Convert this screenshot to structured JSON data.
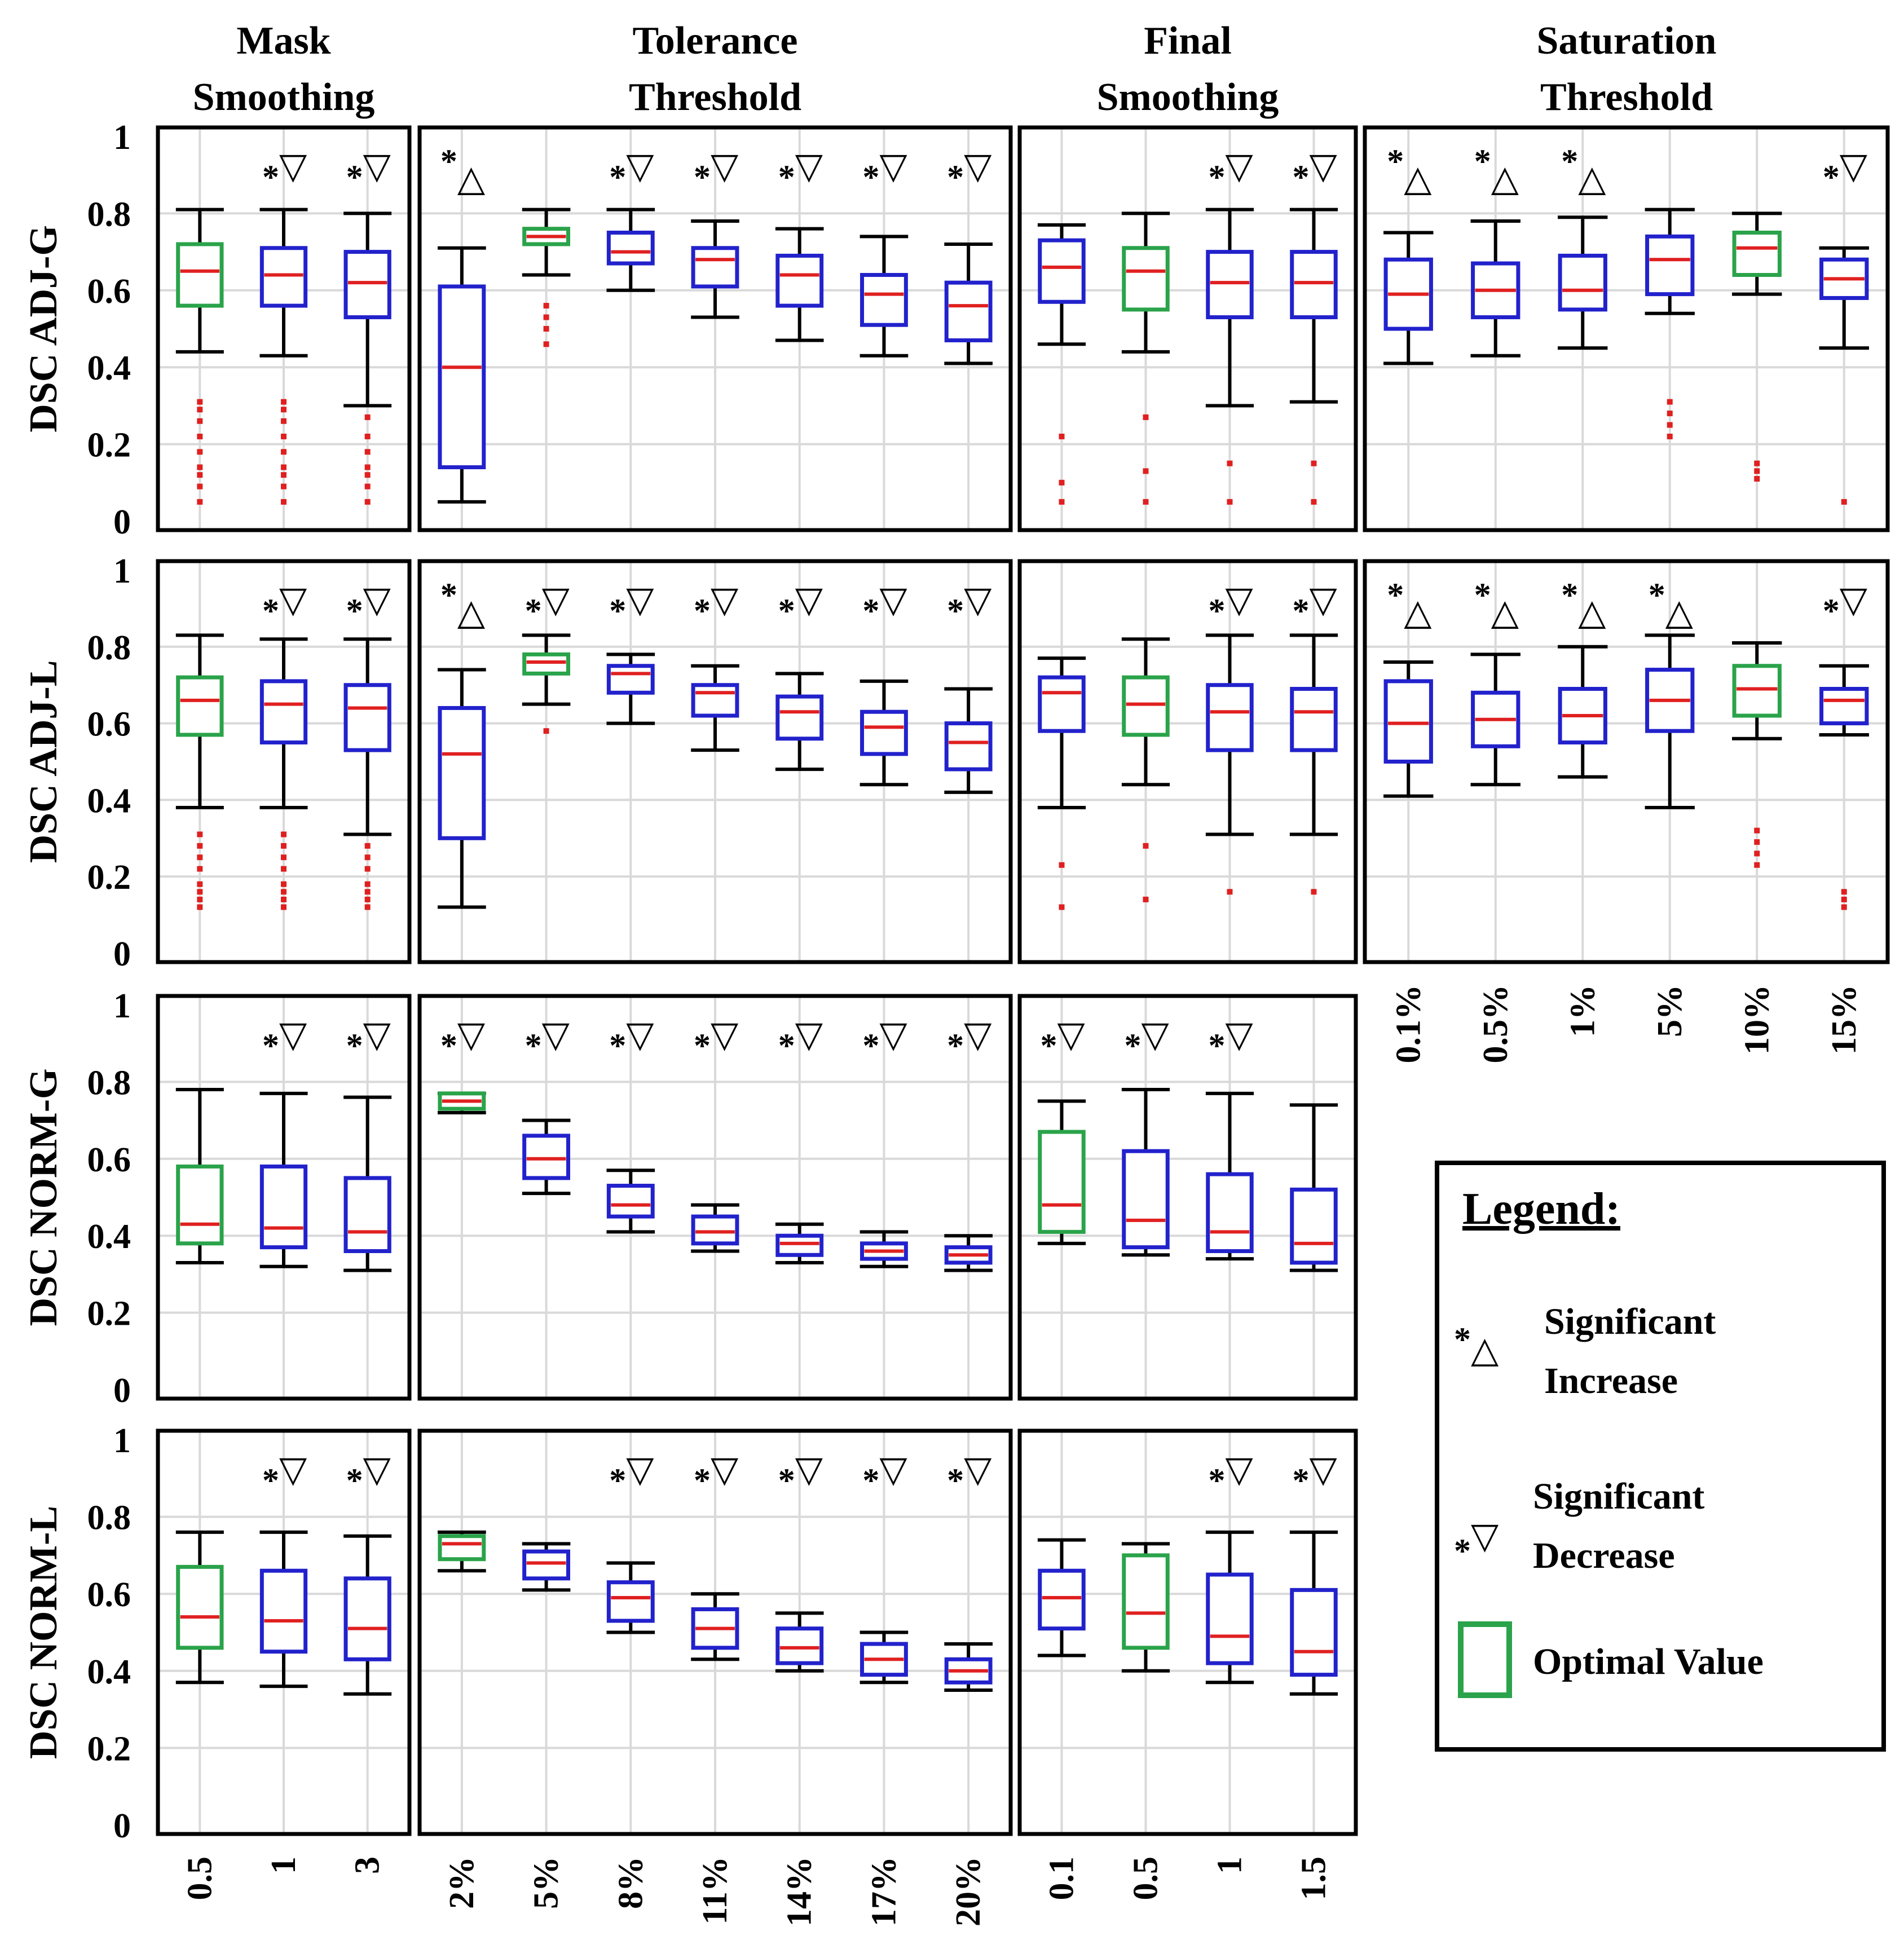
{
  "figure": {
    "column_titles": [
      [
        "Mask",
        "Smoothing"
      ],
      [
        "Tolerance",
        "Threshold"
      ],
      [
        "Final",
        "Smoothing"
      ],
      [
        "Saturation",
        "Threshold"
      ]
    ],
    "row_labels": [
      "DSC ADJ-G",
      "DSC ADJ-L",
      "DSC NORM-G",
      "DSC NORM-L"
    ],
    "y_ticks": [
      "0",
      "0.2",
      "0.4",
      "0.6",
      "0.8",
      "1"
    ],
    "x_labels": [
      [
        "0.5",
        "1",
        "3"
      ],
      [
        "2%",
        "5%",
        "8%",
        "11%",
        "14%",
        "17%",
        "20%"
      ],
      [
        "0.1",
        "0.5",
        "1",
        "1.5"
      ],
      [
        "0.1%",
        "0.5%",
        "1%",
        "5%",
        "10%",
        "15%"
      ]
    ],
    "sig_star": "*",
    "tri_up": "△",
    "tri_down": "▽"
  },
  "legend": {
    "title": "Legend:",
    "increase_line1": "Significant",
    "increase_line2": "Increase",
    "decrease_line1": "Significant",
    "decrease_line2": "Decrease",
    "optimal": "Optimal Value"
  },
  "colors": {
    "box_default": "#2222cc",
    "box_optimal": "#2aa34a",
    "median": "#e02020",
    "whisker": "#000000",
    "outlier": "#e02020",
    "grid": "#d9d9d9"
  },
  "chart_data": [
    {
      "type": "boxplot",
      "panel": "mask-smoothing-adj-g",
      "row": 0,
      "col": 0,
      "ylabel": "DSC ADJ-G",
      "ylim": [
        0,
        1
      ],
      "optimal_index": 0,
      "sig": [
        "none",
        "down",
        "down"
      ],
      "boxes": [
        {
          "label": "0.5",
          "wlo": 0.44,
          "q1": 0.56,
          "med": 0.65,
          "q3": 0.72,
          "whi": 0.81,
          "out": [
            0.05,
            0.09,
            0.12,
            0.14,
            0.18,
            0.22,
            0.26,
            0.29,
            0.31
          ]
        },
        {
          "label": "1",
          "wlo": 0.43,
          "q1": 0.56,
          "med": 0.64,
          "q3": 0.71,
          "whi": 0.81,
          "out": [
            0.05,
            0.09,
            0.12,
            0.14,
            0.18,
            0.22,
            0.26,
            0.29,
            0.31
          ]
        },
        {
          "label": "3",
          "wlo": 0.3,
          "q1": 0.53,
          "med": 0.62,
          "q3": 0.7,
          "whi": 0.8,
          "out": [
            0.05,
            0.09,
            0.12,
            0.14,
            0.18,
            0.22,
            0.27
          ]
        }
      ]
    },
    {
      "type": "boxplot",
      "panel": "tolerance-threshold-adj-g",
      "row": 0,
      "col": 1,
      "ylabel": "DSC ADJ-G",
      "ylim": [
        0,
        1
      ],
      "optimal_index": 1,
      "sig": [
        "up",
        "none",
        "down",
        "down",
        "down",
        "down",
        "down"
      ],
      "boxes": [
        {
          "label": "2%",
          "wlo": 0.05,
          "q1": 0.14,
          "med": 0.4,
          "q3": 0.61,
          "whi": 0.71,
          "out": []
        },
        {
          "label": "5%",
          "wlo": 0.64,
          "q1": 0.72,
          "med": 0.74,
          "q3": 0.76,
          "whi": 0.81,
          "out": [
            0.46,
            0.5,
            0.53,
            0.56
          ]
        },
        {
          "label": "8%",
          "wlo": 0.6,
          "q1": 0.67,
          "med": 0.7,
          "q3": 0.75,
          "whi": 0.81,
          "out": []
        },
        {
          "label": "11%",
          "wlo": 0.53,
          "q1": 0.61,
          "med": 0.68,
          "q3": 0.71,
          "whi": 0.78,
          "out": []
        },
        {
          "label": "14%",
          "wlo": 0.47,
          "q1": 0.56,
          "med": 0.64,
          "q3": 0.69,
          "whi": 0.76,
          "out": []
        },
        {
          "label": "17%",
          "wlo": 0.43,
          "q1": 0.51,
          "med": 0.59,
          "q3": 0.64,
          "whi": 0.74,
          "out": []
        },
        {
          "label": "20%",
          "wlo": 0.41,
          "q1": 0.47,
          "med": 0.56,
          "q3": 0.62,
          "whi": 0.72,
          "out": []
        }
      ]
    },
    {
      "type": "boxplot",
      "panel": "final-smoothing-adj-g",
      "row": 0,
      "col": 2,
      "ylabel": "DSC ADJ-G",
      "ylim": [
        0,
        1
      ],
      "optimal_index": 1,
      "sig": [
        "none",
        "none",
        "down",
        "down"
      ],
      "boxes": [
        {
          "label": "0.1",
          "wlo": 0.46,
          "q1": 0.57,
          "med": 0.66,
          "q3": 0.73,
          "whi": 0.77,
          "out": [
            0.05,
            0.1,
            0.22
          ]
        },
        {
          "label": "0.5",
          "wlo": 0.44,
          "q1": 0.55,
          "med": 0.65,
          "q3": 0.71,
          "whi": 0.8,
          "out": [
            0.05,
            0.13,
            0.27
          ]
        },
        {
          "label": "1",
          "wlo": 0.3,
          "q1": 0.53,
          "med": 0.62,
          "q3": 0.7,
          "whi": 0.81,
          "out": [
            0.05,
            0.15
          ]
        },
        {
          "label": "1.5",
          "wlo": 0.31,
          "q1": 0.53,
          "med": 0.62,
          "q3": 0.7,
          "whi": 0.81,
          "out": [
            0.05,
            0.15
          ]
        }
      ]
    },
    {
      "type": "boxplot",
      "panel": "saturation-threshold-adj-g",
      "row": 0,
      "col": 3,
      "ylabel": "DSC ADJ-G",
      "ylim": [
        0,
        1
      ],
      "optimal_index": 4,
      "sig": [
        "up",
        "up",
        "up",
        "none",
        "none",
        "down"
      ],
      "boxes": [
        {
          "label": "0.1%",
          "wlo": 0.41,
          "q1": 0.5,
          "med": 0.59,
          "q3": 0.68,
          "whi": 0.75,
          "out": []
        },
        {
          "label": "0.5%",
          "wlo": 0.43,
          "q1": 0.53,
          "med": 0.6,
          "q3": 0.67,
          "whi": 0.78,
          "out": []
        },
        {
          "label": "1%",
          "wlo": 0.45,
          "q1": 0.55,
          "med": 0.6,
          "q3": 0.69,
          "whi": 0.79,
          "out": []
        },
        {
          "label": "5%",
          "wlo": 0.54,
          "q1": 0.59,
          "med": 0.68,
          "q3": 0.74,
          "whi": 0.81,
          "out": [
            0.22,
            0.25,
            0.28,
            0.31
          ]
        },
        {
          "label": "10%",
          "wlo": 0.59,
          "q1": 0.64,
          "med": 0.71,
          "q3": 0.75,
          "whi": 0.8,
          "out": [
            0.11,
            0.13,
            0.15
          ]
        },
        {
          "label": "15%",
          "wlo": 0.45,
          "q1": 0.58,
          "med": 0.63,
          "q3": 0.68,
          "whi": 0.71,
          "out": [
            0.05
          ]
        }
      ]
    },
    {
      "type": "boxplot",
      "panel": "mask-smoothing-adj-l",
      "row": 1,
      "col": 0,
      "ylabel": "DSC ADJ-L",
      "ylim": [
        0,
        1
      ],
      "optimal_index": 0,
      "sig": [
        "none",
        "down",
        "down"
      ],
      "boxes": [
        {
          "label": "0.5",
          "wlo": 0.38,
          "q1": 0.57,
          "med": 0.66,
          "q3": 0.72,
          "whi": 0.83,
          "out": [
            0.12,
            0.14,
            0.16,
            0.18,
            0.22,
            0.25,
            0.28,
            0.31
          ]
        },
        {
          "label": "1",
          "wlo": 0.38,
          "q1": 0.55,
          "med": 0.65,
          "q3": 0.71,
          "whi": 0.82,
          "out": [
            0.12,
            0.14,
            0.16,
            0.18,
            0.22,
            0.25,
            0.28,
            0.31
          ]
        },
        {
          "label": "3",
          "wlo": 0.31,
          "q1": 0.53,
          "med": 0.64,
          "q3": 0.7,
          "whi": 0.82,
          "out": [
            0.12,
            0.14,
            0.16,
            0.18,
            0.22,
            0.25,
            0.28
          ]
        }
      ]
    },
    {
      "type": "boxplot",
      "panel": "tolerance-threshold-adj-l",
      "row": 1,
      "col": 1,
      "ylabel": "DSC ADJ-L",
      "ylim": [
        0,
        1
      ],
      "optimal_index": 1,
      "sig": [
        "up",
        "down",
        "down",
        "down",
        "down",
        "down",
        "down"
      ],
      "boxes": [
        {
          "label": "2%",
          "wlo": 0.12,
          "q1": 0.3,
          "med": 0.52,
          "q3": 0.64,
          "whi": 0.74,
          "out": []
        },
        {
          "label": "5%",
          "wlo": 0.65,
          "q1": 0.73,
          "med": 0.76,
          "q3": 0.78,
          "whi": 0.83,
          "out": [
            0.58
          ]
        },
        {
          "label": "8%",
          "wlo": 0.6,
          "q1": 0.68,
          "med": 0.73,
          "q3": 0.75,
          "whi": 0.78,
          "out": []
        },
        {
          "label": "11%",
          "wlo": 0.53,
          "q1": 0.62,
          "med": 0.68,
          "q3": 0.7,
          "whi": 0.75,
          "out": []
        },
        {
          "label": "14%",
          "wlo": 0.48,
          "q1": 0.56,
          "med": 0.63,
          "q3": 0.67,
          "whi": 0.73,
          "out": []
        },
        {
          "label": "17%",
          "wlo": 0.44,
          "q1": 0.52,
          "med": 0.59,
          "q3": 0.63,
          "whi": 0.71,
          "out": []
        },
        {
          "label": "20%",
          "wlo": 0.42,
          "q1": 0.48,
          "med": 0.55,
          "q3": 0.6,
          "whi": 0.69,
          "out": []
        }
      ]
    },
    {
      "type": "boxplot",
      "panel": "final-smoothing-adj-l",
      "row": 1,
      "col": 2,
      "ylabel": "DSC ADJ-L",
      "ylim": [
        0,
        1
      ],
      "optimal_index": 1,
      "sig": [
        "none",
        "none",
        "down",
        "down"
      ],
      "boxes": [
        {
          "label": "0.1",
          "wlo": 0.38,
          "q1": 0.58,
          "med": 0.68,
          "q3": 0.72,
          "whi": 0.77,
          "out": [
            0.12,
            0.23
          ]
        },
        {
          "label": "0.5",
          "wlo": 0.44,
          "q1": 0.57,
          "med": 0.65,
          "q3": 0.72,
          "whi": 0.82,
          "out": [
            0.14,
            0.28
          ]
        },
        {
          "label": "1",
          "wlo": 0.31,
          "q1": 0.53,
          "med": 0.63,
          "q3": 0.7,
          "whi": 0.83,
          "out": [
            0.16
          ]
        },
        {
          "label": "1.5",
          "wlo": 0.31,
          "q1": 0.53,
          "med": 0.63,
          "q3": 0.69,
          "whi": 0.83,
          "out": [
            0.16
          ]
        }
      ]
    },
    {
      "type": "boxplot",
      "panel": "saturation-threshold-adj-l",
      "row": 1,
      "col": 3,
      "ylabel": "DSC ADJ-L",
      "ylim": [
        0,
        1
      ],
      "optimal_index": 4,
      "sig": [
        "up",
        "up",
        "up",
        "up",
        "none",
        "down"
      ],
      "boxes": [
        {
          "label": "0.1%",
          "wlo": 0.41,
          "q1": 0.5,
          "med": 0.6,
          "q3": 0.71,
          "whi": 0.76,
          "out": []
        },
        {
          "label": "0.5%",
          "wlo": 0.44,
          "q1": 0.54,
          "med": 0.61,
          "q3": 0.68,
          "whi": 0.78,
          "out": []
        },
        {
          "label": "1%",
          "wlo": 0.46,
          "q1": 0.55,
          "med": 0.62,
          "q3": 0.69,
          "whi": 0.8,
          "out": []
        },
        {
          "label": "5%",
          "wlo": 0.38,
          "q1": 0.58,
          "med": 0.66,
          "q3": 0.74,
          "whi": 0.83,
          "out": []
        },
        {
          "label": "10%",
          "wlo": 0.56,
          "q1": 0.62,
          "med": 0.69,
          "q3": 0.75,
          "whi": 0.81,
          "out": [
            0.23,
            0.26,
            0.29,
            0.32
          ]
        },
        {
          "label": "15%",
          "wlo": 0.57,
          "q1": 0.6,
          "med": 0.66,
          "q3": 0.69,
          "whi": 0.75,
          "out": [
            0.12,
            0.14,
            0.16
          ]
        }
      ]
    },
    {
      "type": "boxplot",
      "panel": "mask-smoothing-norm-g",
      "row": 2,
      "col": 0,
      "ylabel": "DSC NORM-G",
      "ylim": [
        0,
        1
      ],
      "optimal_index": 0,
      "sig": [
        "none",
        "down",
        "down"
      ],
      "boxes": [
        {
          "label": "0.5",
          "wlo": 0.33,
          "q1": 0.38,
          "med": 0.43,
          "q3": 0.58,
          "whi": 0.78,
          "out": []
        },
        {
          "label": "1",
          "wlo": 0.32,
          "q1": 0.37,
          "med": 0.42,
          "q3": 0.58,
          "whi": 0.77,
          "out": []
        },
        {
          "label": "3",
          "wlo": 0.31,
          "q1": 0.36,
          "med": 0.41,
          "q3": 0.55,
          "whi": 0.76,
          "out": []
        }
      ]
    },
    {
      "type": "boxplot",
      "panel": "tolerance-threshold-norm-g",
      "row": 2,
      "col": 1,
      "ylabel": "DSC NORM-G",
      "ylim": [
        0,
        1
      ],
      "optimal_index": 0,
      "sig": [
        "down",
        "down",
        "down",
        "down",
        "down",
        "down",
        "down"
      ],
      "boxes": [
        {
          "label": "2%",
          "wlo": 0.72,
          "q1": 0.73,
          "med": 0.75,
          "q3": 0.77,
          "whi": 0.77,
          "out": []
        },
        {
          "label": "5%",
          "wlo": 0.51,
          "q1": 0.55,
          "med": 0.6,
          "q3": 0.66,
          "whi": 0.7,
          "out": []
        },
        {
          "label": "8%",
          "wlo": 0.41,
          "q1": 0.45,
          "med": 0.48,
          "q3": 0.53,
          "whi": 0.57,
          "out": []
        },
        {
          "label": "11%",
          "wlo": 0.36,
          "q1": 0.38,
          "med": 0.41,
          "q3": 0.45,
          "whi": 0.48,
          "out": []
        },
        {
          "label": "14%",
          "wlo": 0.33,
          "q1": 0.35,
          "med": 0.38,
          "q3": 0.4,
          "whi": 0.43,
          "out": []
        },
        {
          "label": "17%",
          "wlo": 0.32,
          "q1": 0.34,
          "med": 0.36,
          "q3": 0.38,
          "whi": 0.41,
          "out": []
        },
        {
          "label": "20%",
          "wlo": 0.31,
          "q1": 0.33,
          "med": 0.35,
          "q3": 0.37,
          "whi": 0.4,
          "out": []
        }
      ]
    },
    {
      "type": "boxplot",
      "panel": "final-smoothing-norm-g",
      "row": 2,
      "col": 2,
      "ylabel": "DSC NORM-G",
      "ylim": [
        0,
        1
      ],
      "optimal_index": 0,
      "sig": [
        "down",
        "down",
        "down",
        "none"
      ],
      "boxes": [
        {
          "label": "0.1",
          "wlo": 0.38,
          "q1": 0.41,
          "med": 0.48,
          "q3": 0.67,
          "whi": 0.75,
          "out": []
        },
        {
          "label": "0.5",
          "wlo": 0.35,
          "q1": 0.37,
          "med": 0.44,
          "q3": 0.62,
          "whi": 0.78,
          "out": []
        },
        {
          "label": "1",
          "wlo": 0.34,
          "q1": 0.36,
          "med": 0.41,
          "q3": 0.56,
          "whi": 0.77,
          "out": []
        },
        {
          "label": "1.5",
          "wlo": 0.31,
          "q1": 0.33,
          "med": 0.38,
          "q3": 0.52,
          "whi": 0.74,
          "out": []
        }
      ]
    },
    {
      "type": "boxplot",
      "panel": "mask-smoothing-norm-l",
      "row": 3,
      "col": 0,
      "ylabel": "DSC NORM-L",
      "ylim": [
        0,
        1
      ],
      "optimal_index": 0,
      "sig": [
        "none",
        "down",
        "down"
      ],
      "boxes": [
        {
          "label": "0.5",
          "wlo": 0.37,
          "q1": 0.46,
          "med": 0.54,
          "q3": 0.67,
          "whi": 0.76,
          "out": []
        },
        {
          "label": "1",
          "wlo": 0.36,
          "q1": 0.45,
          "med": 0.53,
          "q3": 0.66,
          "whi": 0.76,
          "out": []
        },
        {
          "label": "3",
          "wlo": 0.34,
          "q1": 0.43,
          "med": 0.51,
          "q3": 0.64,
          "whi": 0.75,
          "out": []
        }
      ]
    },
    {
      "type": "boxplot",
      "panel": "tolerance-threshold-norm-l",
      "row": 3,
      "col": 1,
      "ylabel": "DSC NORM-L",
      "ylim": [
        0,
        1
      ],
      "optimal_index": 0,
      "sig": [
        "none",
        "none",
        "down",
        "down",
        "down",
        "down",
        "down"
      ],
      "boxes": [
        {
          "label": "2%",
          "wlo": 0.66,
          "q1": 0.69,
          "med": 0.73,
          "q3": 0.75,
          "whi": 0.76,
          "out": []
        },
        {
          "label": "5%",
          "wlo": 0.61,
          "q1": 0.64,
          "med": 0.68,
          "q3": 0.71,
          "whi": 0.73,
          "out": []
        },
        {
          "label": "8%",
          "wlo": 0.5,
          "q1": 0.53,
          "med": 0.59,
          "q3": 0.63,
          "whi": 0.68,
          "out": []
        },
        {
          "label": "11%",
          "wlo": 0.43,
          "q1": 0.46,
          "med": 0.51,
          "q3": 0.56,
          "whi": 0.6,
          "out": []
        },
        {
          "label": "14%",
          "wlo": 0.4,
          "q1": 0.42,
          "med": 0.46,
          "q3": 0.51,
          "whi": 0.55,
          "out": []
        },
        {
          "label": "17%",
          "wlo": 0.37,
          "q1": 0.39,
          "med": 0.43,
          "q3": 0.47,
          "whi": 0.5,
          "out": []
        },
        {
          "label": "20%",
          "wlo": 0.35,
          "q1": 0.37,
          "med": 0.4,
          "q3": 0.43,
          "whi": 0.47,
          "out": []
        }
      ]
    },
    {
      "type": "boxplot",
      "panel": "final-smoothing-norm-l",
      "row": 3,
      "col": 2,
      "ylabel": "DSC NORM-L",
      "ylim": [
        0,
        1
      ],
      "optimal_index": 1,
      "sig": [
        "none",
        "none",
        "down",
        "down"
      ],
      "boxes": [
        {
          "label": "0.1",
          "wlo": 0.44,
          "q1": 0.51,
          "med": 0.59,
          "q3": 0.66,
          "whi": 0.74,
          "out": []
        },
        {
          "label": "0.5",
          "wlo": 0.4,
          "q1": 0.46,
          "med": 0.55,
          "q3": 0.7,
          "whi": 0.73,
          "out": []
        },
        {
          "label": "1",
          "wlo": 0.37,
          "q1": 0.42,
          "med": 0.49,
          "q3": 0.65,
          "whi": 0.76,
          "out": []
        },
        {
          "label": "1.5",
          "wlo": 0.34,
          "q1": 0.39,
          "med": 0.45,
          "q3": 0.61,
          "whi": 0.76,
          "out": []
        }
      ]
    }
  ]
}
